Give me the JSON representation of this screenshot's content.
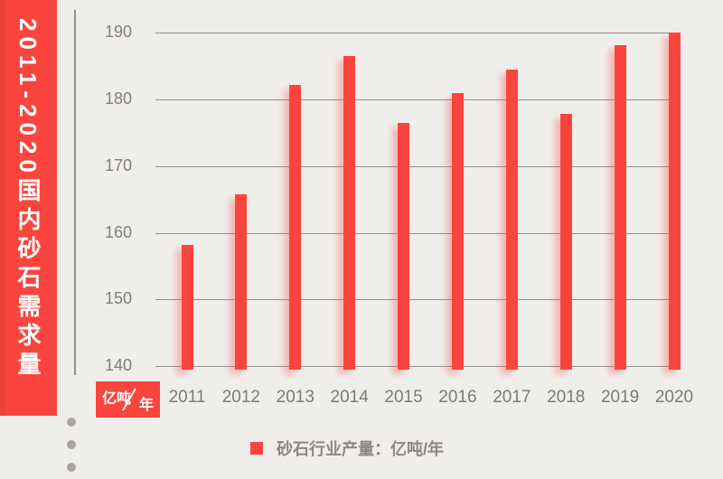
{
  "banner": {
    "title": "2011-2020国内砂石需求量"
  },
  "unit_badge": {
    "numerator": "亿吨",
    "denominator": "年"
  },
  "legend": {
    "label": "砂石行业产量：亿吨/年",
    "marker_color": "#FA453F"
  },
  "colors": {
    "accent_red": "#FA453F",
    "background": "#F0EEEB",
    "gridline": "#93918E",
    "axis_text": "#7D7B78"
  },
  "chart_data": {
    "type": "bar",
    "title": "2011-2020国内砂石需求量",
    "categories": [
      "2011",
      "2012",
      "2013",
      "2014",
      "2015",
      "2016",
      "2017",
      "2018",
      "2019",
      "2020"
    ],
    "values": [
      158.2,
      165.7,
      182.2,
      186.5,
      176.4,
      180.9,
      184.5,
      177.8,
      188.1,
      190.0
    ],
    "series_name": "砂石行业产量：亿吨/年",
    "ylabel": "亿吨/年",
    "ylim": [
      140,
      190
    ],
    "yticks": [
      140,
      150,
      160,
      170,
      180,
      190
    ],
    "bar_color": "#FA453F",
    "grid": true,
    "legend_position": "bottom"
  }
}
